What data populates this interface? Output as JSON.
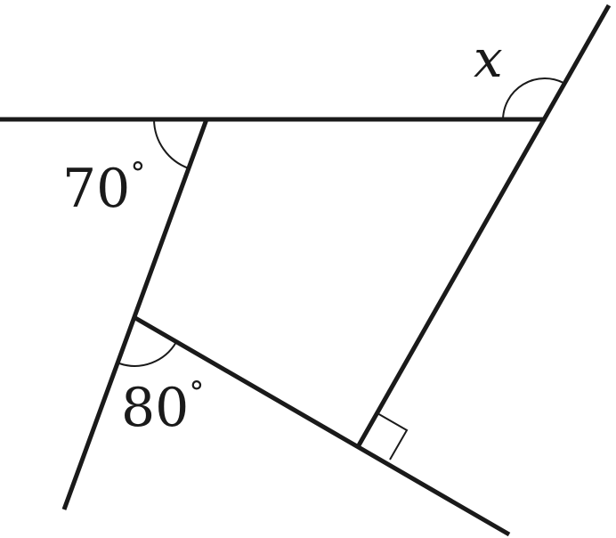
{
  "labels": {
    "x_angle": "x",
    "angle_70_value": "70",
    "angle_80_value": "80",
    "degree_symbol": "°"
  }
}
